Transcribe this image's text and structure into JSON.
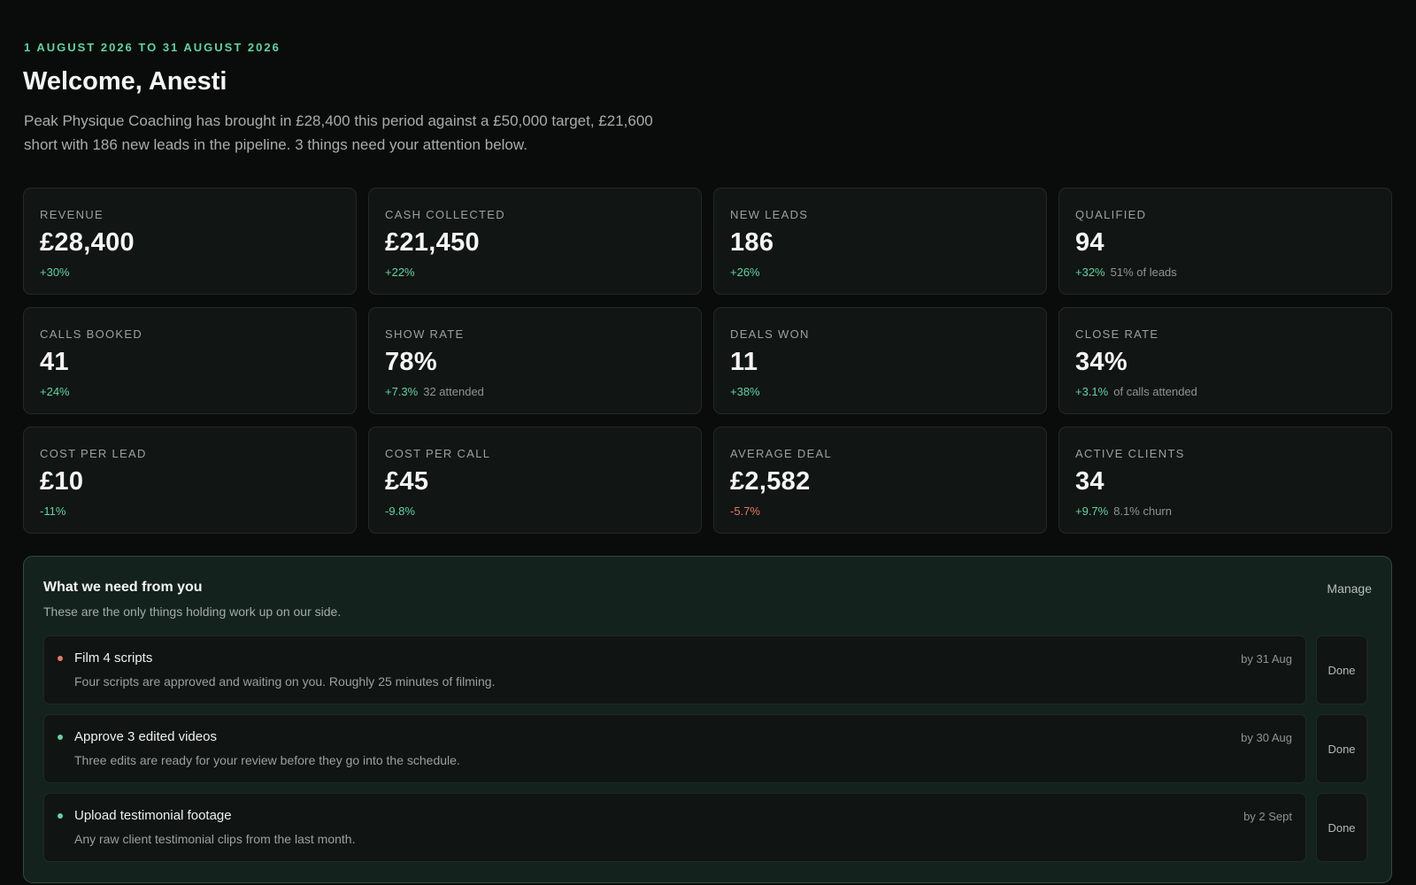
{
  "header": {
    "period": "1 AUGUST 2026 TO 31 AUGUST 2026",
    "welcome": "Welcome, Anesti",
    "summary_line1": "Peak Physique Coaching has brought in £28,400 this period against a £50,000 target, £21,600",
    "summary_line2": "short with 186 new leads in the pipeline. 3 things need your attention below."
  },
  "metrics": [
    {
      "label": "REVENUE",
      "value": "£28,400",
      "delta": "+30%",
      "trend": "up",
      "note": ""
    },
    {
      "label": "CASH COLLECTED",
      "value": "£21,450",
      "delta": "+22%",
      "trend": "up",
      "note": ""
    },
    {
      "label": "NEW LEADS",
      "value": "186",
      "delta": "+26%",
      "trend": "up",
      "note": ""
    },
    {
      "label": "QUALIFIED",
      "value": "94",
      "delta": "+32%",
      "trend": "up",
      "note": "51% of leads"
    },
    {
      "label": "CALLS BOOKED",
      "value": "41",
      "delta": "+24%",
      "trend": "up",
      "note": ""
    },
    {
      "label": "SHOW RATE",
      "value": "78%",
      "delta": "+7.3%",
      "trend": "up",
      "note": "32 attended"
    },
    {
      "label": "DEALS WON",
      "value": "11",
      "delta": "+38%",
      "trend": "up",
      "note": ""
    },
    {
      "label": "CLOSE RATE",
      "value": "34%",
      "delta": "+3.1%",
      "trend": "up",
      "note": "of calls attended"
    },
    {
      "label": "COST PER LEAD",
      "value": "£10",
      "delta": "-11%",
      "trend": "up",
      "note": ""
    },
    {
      "label": "COST PER CALL",
      "value": "£45",
      "delta": "-9.8%",
      "trend": "up",
      "note": ""
    },
    {
      "label": "AVERAGE DEAL",
      "value": "£2,582",
      "delta": "-5.7%",
      "trend": "down",
      "note": ""
    },
    {
      "label": "ACTIVE CLIENTS",
      "value": "34",
      "delta": "+9.7%",
      "trend": "up",
      "note": "8.1% churn"
    }
  ],
  "needs": {
    "title": "What we need from you",
    "subtitle": "These are the only things holding work up on our side.",
    "manage_label": "Manage",
    "done_label": "Done",
    "tasks": [
      {
        "title": "Film 4 scripts",
        "desc": "Four scripts are approved and waiting on you. Roughly 25 minutes of filming.",
        "due": "by 31 Aug",
        "priority": "urgent"
      },
      {
        "title": "Approve 3 edited videos",
        "desc": "Three edits are ready for your review before they go into the schedule.",
        "due": "by 30 Aug",
        "priority": "normal"
      },
      {
        "title": "Upload testimonial footage",
        "desc": "Any raw client testimonial clips from the last month.",
        "due": "by 2 Sept",
        "priority": "normal"
      }
    ]
  },
  "colors": {
    "accent": "#5fd3a5",
    "negative": "#e27a62",
    "background": "#0a0c0b",
    "card": "#111514",
    "panel": "#14221e"
  }
}
